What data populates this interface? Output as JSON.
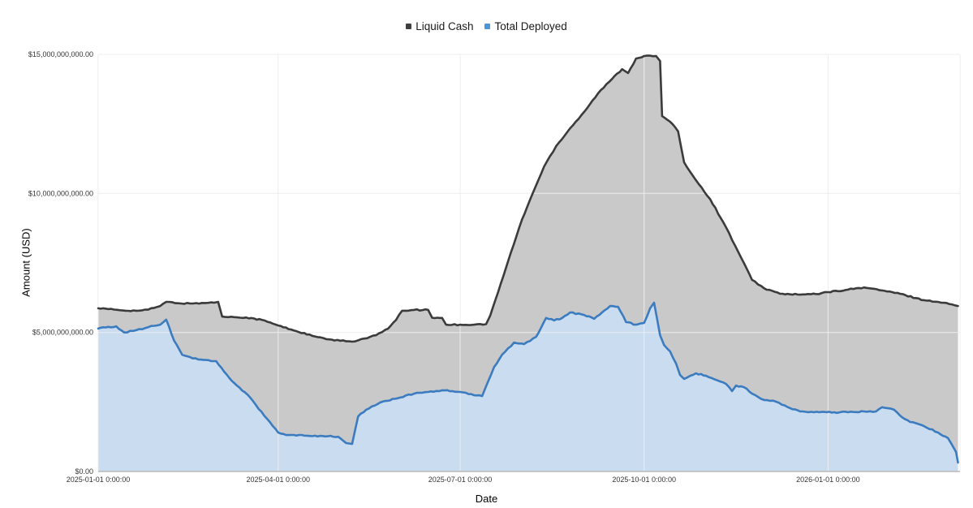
{
  "legend": {
    "position": "top-center",
    "items": [
      {
        "label": "Liquid Cash",
        "marker_color": "#3f3f3f"
      },
      {
        "label": "Total Deployed",
        "marker_color": "#4e95d6"
      }
    ]
  },
  "chart_data": {
    "type": "area",
    "title": "",
    "xlabel": "Date",
    "ylabel": "Amount (USD)",
    "value_unit": "USD billions",
    "grid": true,
    "legend_position": "top-center",
    "x_domain": [
      "2025-01-01",
      "2026-03-08"
    ],
    "y_domain_billions": [
      0,
      15
    ],
    "x_ticks": [
      {
        "date": "2025-01-01",
        "label": "2025-01-01 0:00:00"
      },
      {
        "date": "2025-04-01",
        "label": "2025-04-01 0:00:00"
      },
      {
        "date": "2025-07-01",
        "label": "2025-07-01 0:00:00"
      },
      {
        "date": "2025-10-01",
        "label": "2025-10-01 0:00:00"
      },
      {
        "date": "2026-01-01",
        "label": "2026-01-01 0:00:00"
      }
    ],
    "y_ticks": [
      {
        "value": 0,
        "label": "$0.00"
      },
      {
        "value": 5,
        "label": "$5,000,000,000.00"
      },
      {
        "value": 10,
        "label": "$10,000,000,000.00"
      },
      {
        "value": 15,
        "label": "$15,000,000,000.00"
      }
    ],
    "series": [
      {
        "name": "Liquid Cash",
        "line_color": "#3b3b3b",
        "fill_color": "#c9c9c9",
        "points": [
          [
            "2025-01-01",
            5.87
          ],
          [
            "2025-01-06",
            5.84
          ],
          [
            "2025-01-12",
            5.8
          ],
          [
            "2025-01-20",
            5.78
          ],
          [
            "2025-01-26",
            5.82
          ],
          [
            "2025-02-01",
            5.95
          ],
          [
            "2025-02-04",
            6.1
          ],
          [
            "2025-02-10",
            6.05
          ],
          [
            "2025-02-16",
            6.04
          ],
          [
            "2025-02-22",
            6.06
          ],
          [
            "2025-02-28",
            6.07
          ],
          [
            "2025-03-02",
            6.1
          ],
          [
            "2025-03-04",
            5.57
          ],
          [
            "2025-03-10",
            5.55
          ],
          [
            "2025-03-16",
            5.54
          ],
          [
            "2025-03-24",
            5.45
          ],
          [
            "2025-04-01",
            5.25
          ],
          [
            "2025-04-10",
            5.05
          ],
          [
            "2025-04-18",
            4.88
          ],
          [
            "2025-04-25",
            4.76
          ],
          [
            "2025-05-02",
            4.7
          ],
          [
            "2025-05-08",
            4.67
          ],
          [
            "2025-05-14",
            4.78
          ],
          [
            "2025-05-20",
            4.9
          ],
          [
            "2025-05-26",
            5.14
          ],
          [
            "2025-05-30",
            5.45
          ],
          [
            "2025-06-02",
            5.78
          ],
          [
            "2025-06-08",
            5.81
          ],
          [
            "2025-06-15",
            5.81
          ],
          [
            "2025-06-17",
            5.53
          ],
          [
            "2025-06-22",
            5.52
          ],
          [
            "2025-06-24",
            5.28
          ],
          [
            "2025-07-01",
            5.28
          ],
          [
            "2025-07-08",
            5.28
          ],
          [
            "2025-07-14",
            5.3
          ],
          [
            "2025-07-16",
            5.6
          ],
          [
            "2025-07-20",
            6.45
          ],
          [
            "2025-07-25",
            7.56
          ],
          [
            "2025-08-01",
            9.07
          ],
          [
            "2025-08-06",
            9.95
          ],
          [
            "2025-08-12",
            10.97
          ],
          [
            "2025-08-18",
            11.7
          ],
          [
            "2025-08-25",
            12.34
          ],
          [
            "2025-09-01",
            12.93
          ],
          [
            "2025-09-08",
            13.6
          ],
          [
            "2025-09-15",
            14.12
          ],
          [
            "2025-09-20",
            14.47
          ],
          [
            "2025-09-23",
            14.33
          ],
          [
            "2025-09-27",
            14.85
          ],
          [
            "2025-10-01",
            14.94
          ],
          [
            "2025-10-07",
            14.94
          ],
          [
            "2025-10-09",
            14.76
          ],
          [
            "2025-10-10",
            12.78
          ],
          [
            "2025-10-14",
            12.58
          ],
          [
            "2025-10-18",
            12.23
          ],
          [
            "2025-10-21",
            11.12
          ],
          [
            "2025-10-27",
            10.47
          ],
          [
            "2025-11-03",
            9.8
          ],
          [
            "2025-11-11",
            8.78
          ],
          [
            "2025-11-17",
            7.91
          ],
          [
            "2025-11-24",
            6.89
          ],
          [
            "2025-11-30",
            6.59
          ],
          [
            "2025-12-08",
            6.39
          ],
          [
            "2025-12-18",
            6.36
          ],
          [
            "2025-12-26",
            6.38
          ],
          [
            "2026-01-01",
            6.45
          ],
          [
            "2026-01-11",
            6.54
          ],
          [
            "2026-01-19",
            6.62
          ],
          [
            "2026-01-28",
            6.51
          ],
          [
            "2026-02-06",
            6.39
          ],
          [
            "2026-02-18",
            6.16
          ],
          [
            "2026-02-25",
            6.1
          ],
          [
            "2026-03-04",
            6.01
          ],
          [
            "2026-03-07",
            5.95
          ]
        ]
      },
      {
        "name": "Total Deployed",
        "line_color": "#3b7bbf",
        "fill_color": "#c9dcf0",
        "points": [
          [
            "2025-01-01",
            5.14
          ],
          [
            "2025-01-06",
            5.2
          ],
          [
            "2025-01-10",
            5.22
          ],
          [
            "2025-01-14",
            5.0
          ],
          [
            "2025-01-20",
            5.08
          ],
          [
            "2025-01-26",
            5.19
          ],
          [
            "2025-02-01",
            5.28
          ],
          [
            "2025-02-04",
            5.46
          ],
          [
            "2025-02-08",
            4.7
          ],
          [
            "2025-02-12",
            4.2
          ],
          [
            "2025-02-20",
            4.03
          ],
          [
            "2025-03-01",
            3.97
          ],
          [
            "2025-03-05",
            3.59
          ],
          [
            "2025-03-10",
            3.18
          ],
          [
            "2025-03-18",
            2.66
          ],
          [
            "2025-03-25",
            2.01
          ],
          [
            "2025-04-01",
            1.4
          ],
          [
            "2025-04-05",
            1.31
          ],
          [
            "2025-04-14",
            1.29
          ],
          [
            "2025-04-22",
            1.28
          ],
          [
            "2025-05-01",
            1.25
          ],
          [
            "2025-05-05",
            1.02
          ],
          [
            "2025-05-08",
            0.99
          ],
          [
            "2025-05-11",
            1.98
          ],
          [
            "2025-05-15",
            2.22
          ],
          [
            "2025-05-22",
            2.48
          ],
          [
            "2025-06-01",
            2.66
          ],
          [
            "2025-06-08",
            2.8
          ],
          [
            "2025-06-15",
            2.86
          ],
          [
            "2025-06-22",
            2.92
          ],
          [
            "2025-07-01",
            2.86
          ],
          [
            "2025-07-08",
            2.74
          ],
          [
            "2025-07-12",
            2.71
          ],
          [
            "2025-07-15",
            3.24
          ],
          [
            "2025-07-18",
            3.76
          ],
          [
            "2025-07-22",
            4.2
          ],
          [
            "2025-07-28",
            4.64
          ],
          [
            "2025-08-02",
            4.58
          ],
          [
            "2025-08-08",
            4.84
          ],
          [
            "2025-08-13",
            5.52
          ],
          [
            "2025-08-17",
            5.43
          ],
          [
            "2025-08-21",
            5.52
          ],
          [
            "2025-08-25",
            5.72
          ],
          [
            "2025-09-01",
            5.63
          ],
          [
            "2025-09-06",
            5.49
          ],
          [
            "2025-09-10",
            5.72
          ],
          [
            "2025-09-14",
            5.95
          ],
          [
            "2025-09-18",
            5.92
          ],
          [
            "2025-09-22",
            5.37
          ],
          [
            "2025-09-27",
            5.28
          ],
          [
            "2025-10-01",
            5.34
          ],
          [
            "2025-10-04",
            5.87
          ],
          [
            "2025-10-06",
            6.07
          ],
          [
            "2025-10-09",
            4.9
          ],
          [
            "2025-10-11",
            4.55
          ],
          [
            "2025-10-14",
            4.32
          ],
          [
            "2025-10-17",
            3.88
          ],
          [
            "2025-10-19",
            3.47
          ],
          [
            "2025-10-21",
            3.33
          ],
          [
            "2025-10-24",
            3.44
          ],
          [
            "2025-10-27",
            3.53
          ],
          [
            "2025-11-01",
            3.44
          ],
          [
            "2025-11-08",
            3.24
          ],
          [
            "2025-11-11",
            3.15
          ],
          [
            "2025-11-14",
            2.89
          ],
          [
            "2025-11-16",
            3.09
          ],
          [
            "2025-11-20",
            3.03
          ],
          [
            "2025-11-24",
            2.8
          ],
          [
            "2025-11-30",
            2.57
          ],
          [
            "2025-12-06",
            2.51
          ],
          [
            "2025-12-13",
            2.28
          ],
          [
            "2025-12-18",
            2.16
          ],
          [
            "2025-12-25",
            2.13
          ],
          [
            "2026-01-04",
            2.13
          ],
          [
            "2026-01-11",
            2.13
          ],
          [
            "2026-01-19",
            2.16
          ],
          [
            "2026-01-25",
            2.16
          ],
          [
            "2026-01-28",
            2.31
          ],
          [
            "2026-02-03",
            2.22
          ],
          [
            "2026-02-06",
            2.01
          ],
          [
            "2026-02-11",
            1.78
          ],
          [
            "2026-02-18",
            1.63
          ],
          [
            "2026-02-25",
            1.4
          ],
          [
            "2026-03-02",
            1.2
          ],
          [
            "2026-03-04",
            0.96
          ],
          [
            "2026-03-06",
            0.7
          ],
          [
            "2026-03-07",
            0.32
          ]
        ]
      }
    ]
  }
}
